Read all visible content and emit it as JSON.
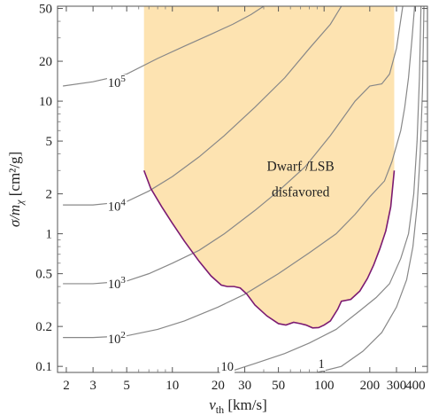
{
  "chart_data": {
    "type": "line",
    "title": "",
    "x_axis": {
      "label_main": "v",
      "label_sub": "th",
      "label_unit": " [km/s]",
      "scale": "log",
      "range": [
        1.75,
        480
      ],
      "ticks": [
        {
          "value": 2,
          "label": "2"
        },
        {
          "value": 3,
          "label": "3"
        },
        {
          "value": 5,
          "label": "5"
        },
        {
          "value": 10,
          "label": "10"
        },
        {
          "value": 20,
          "label": "20"
        },
        {
          "value": 30,
          "label": "30"
        },
        {
          "value": 50,
          "label": "50"
        },
        {
          "value": 100,
          "label": "100"
        },
        {
          "value": 200,
          "label": "200"
        },
        {
          "value": 300,
          "label": "300"
        },
        {
          "value": 400,
          "label": "400"
        }
      ],
      "minor_ticks": [
        4,
        6,
        7,
        8,
        9,
        40,
        60,
        70,
        80,
        90
      ]
    },
    "y_axis": {
      "label_main": "σ/m",
      "label_sub": "χ",
      "label_unit": " [cm²/g]",
      "scale": "log",
      "range": [
        0.09,
        52
      ],
      "ticks": [
        {
          "value": 0.1,
          "label": "0.1"
        },
        {
          "value": 0.2,
          "label": "0.2"
        },
        {
          "value": 0.5,
          "label": "0.5"
        },
        {
          "value": 1,
          "label": "1"
        },
        {
          "value": 2,
          "label": "2"
        },
        {
          "value": 5,
          "label": "5"
        },
        {
          "value": 10,
          "label": "10"
        },
        {
          "value": 20,
          "label": "20"
        },
        {
          "value": 50,
          "label": "50"
        }
      ],
      "minor_ticks": [
        0.3,
        0.4,
        0.6,
        0.7,
        0.8,
        0.9,
        3,
        4,
        6,
        7,
        8,
        9,
        30,
        40
      ]
    },
    "region": {
      "label_line1": "Dwarf /LSB",
      "label_line2": "disfavored",
      "fill_color": "#fde3b1",
      "boundary_color": "#7b1a72",
      "x_left": 6.5,
      "x_right": 290,
      "lower_boundary": [
        [
          6.5,
          3.0
        ],
        [
          7.2,
          2.2
        ],
        [
          8.5,
          1.6
        ],
        [
          10,
          1.2
        ],
        [
          12,
          0.88
        ],
        [
          15,
          0.62
        ],
        [
          18,
          0.48
        ],
        [
          21,
          0.41
        ],
        [
          23,
          0.4
        ],
        [
          25.5,
          0.4
        ],
        [
          28,
          0.39
        ],
        [
          31,
          0.35
        ],
        [
          35,
          0.29
        ],
        [
          42,
          0.24
        ],
        [
          50,
          0.21
        ],
        [
          56,
          0.205
        ],
        [
          63,
          0.215
        ],
        [
          70,
          0.21
        ],
        [
          76,
          0.205
        ],
        [
          84,
          0.195
        ],
        [
          92,
          0.196
        ],
        [
          100,
          0.205
        ],
        [
          110,
          0.22
        ],
        [
          123,
          0.27
        ],
        [
          130,
          0.31
        ],
        [
          150,
          0.32
        ],
        [
          172,
          0.37
        ],
        [
          193,
          0.46
        ],
        [
          212,
          0.58
        ],
        [
          233,
          0.77
        ],
        [
          255,
          1.05
        ],
        [
          275,
          1.6
        ],
        [
          290,
          3.0
        ]
      ]
    },
    "series": [
      {
        "label_base": "10",
        "label_exp": "5",
        "color": "#888888",
        "label_at": [
          4.3,
          13.8
        ],
        "points": [
          [
            1.9,
            13.0
          ],
          [
            3,
            14.0
          ],
          [
            5,
            16.0
          ],
          [
            8,
            21.0
          ],
          [
            12,
            26.0
          ],
          [
            18,
            32.0
          ],
          [
            25,
            38.0
          ],
          [
            33,
            45.0
          ],
          [
            40,
            52.0
          ]
        ]
      },
      {
        "label_base": "10",
        "label_exp": "4",
        "color": "#888888",
        "label_at": [
          4.3,
          1.62
        ],
        "points": [
          [
            1.9,
            1.65
          ],
          [
            3,
            1.65
          ],
          [
            5,
            1.75
          ],
          [
            7,
            2.1
          ],
          [
            10,
            2.7
          ],
          [
            15,
            3.8
          ],
          [
            22,
            5.5
          ],
          [
            35,
            9.0
          ],
          [
            55,
            15.0
          ],
          [
            80,
            25.0
          ],
          [
            110,
            38.0
          ],
          [
            130,
            52.0
          ]
        ]
      },
      {
        "label_base": "10",
        "label_exp": "3",
        "color": "#888888",
        "label_at": [
          4.3,
          0.42
        ],
        "points": [
          [
            1.9,
            0.42
          ],
          [
            3,
            0.42
          ],
          [
            5,
            0.44
          ],
          [
            7,
            0.5
          ],
          [
            10,
            0.6
          ],
          [
            15,
            0.75
          ],
          [
            22,
            1.0
          ],
          [
            35,
            1.5
          ],
          [
            50,
            2.1
          ],
          [
            75,
            3.2
          ],
          [
            110,
            5.5
          ],
          [
            160,
            10.0
          ],
          [
            200,
            13.0
          ],
          [
            240,
            13.5
          ],
          [
            270,
            16.0
          ],
          [
            300,
            25.0
          ],
          [
            330,
            52.0
          ]
        ]
      },
      {
        "label_base": "10",
        "label_exp": "2",
        "color": "#888888",
        "label_at": [
          4.3,
          0.162
        ],
        "points": [
          [
            1.9,
            0.165
          ],
          [
            3,
            0.165
          ],
          [
            5,
            0.17
          ],
          [
            8,
            0.19
          ],
          [
            12,
            0.22
          ],
          [
            20,
            0.28
          ],
          [
            30,
            0.35
          ],
          [
            50,
            0.5
          ],
          [
            80,
            0.72
          ],
          [
            120,
            1.0
          ],
          [
            160,
            1.4
          ],
          [
            200,
            1.9
          ],
          [
            250,
            2.5
          ],
          [
            280,
            3.5
          ],
          [
            320,
            6.0
          ],
          [
            340,
            9.0
          ],
          [
            360,
            15.0
          ],
          [
            380,
            30.0
          ],
          [
            395,
            52.0
          ]
        ]
      },
      {
        "label_base": "10",
        "label_exp": "",
        "color": "#888888",
        "label_at": [
          23,
          0.1
        ],
        "points": [
          [
            23,
            0.09
          ],
          [
            35,
            0.105
          ],
          [
            55,
            0.125
          ],
          [
            80,
            0.15
          ],
          [
            120,
            0.19
          ],
          [
            170,
            0.26
          ],
          [
            220,
            0.33
          ],
          [
            270,
            0.42
          ],
          [
            320,
            0.65
          ],
          [
            360,
            1.0
          ],
          [
            390,
            2.0
          ],
          [
            410,
            5.0
          ],
          [
            425,
            15.0
          ],
          [
            435,
            52.0
          ]
        ]
      },
      {
        "label_base": "1",
        "label_exp": "",
        "color": "#888888",
        "label_at": [
          96,
          0.105
        ],
        "points": [
          [
            90,
            0.09
          ],
          [
            130,
            0.1
          ],
          [
            180,
            0.13
          ],
          [
            240,
            0.18
          ],
          [
            300,
            0.28
          ],
          [
            350,
            0.45
          ],
          [
            385,
            0.8
          ],
          [
            410,
            1.6
          ],
          [
            430,
            4.0
          ],
          [
            445,
            12.0
          ],
          [
            455,
            52.0
          ]
        ]
      }
    ],
    "grid": false,
    "legend": "none"
  }
}
